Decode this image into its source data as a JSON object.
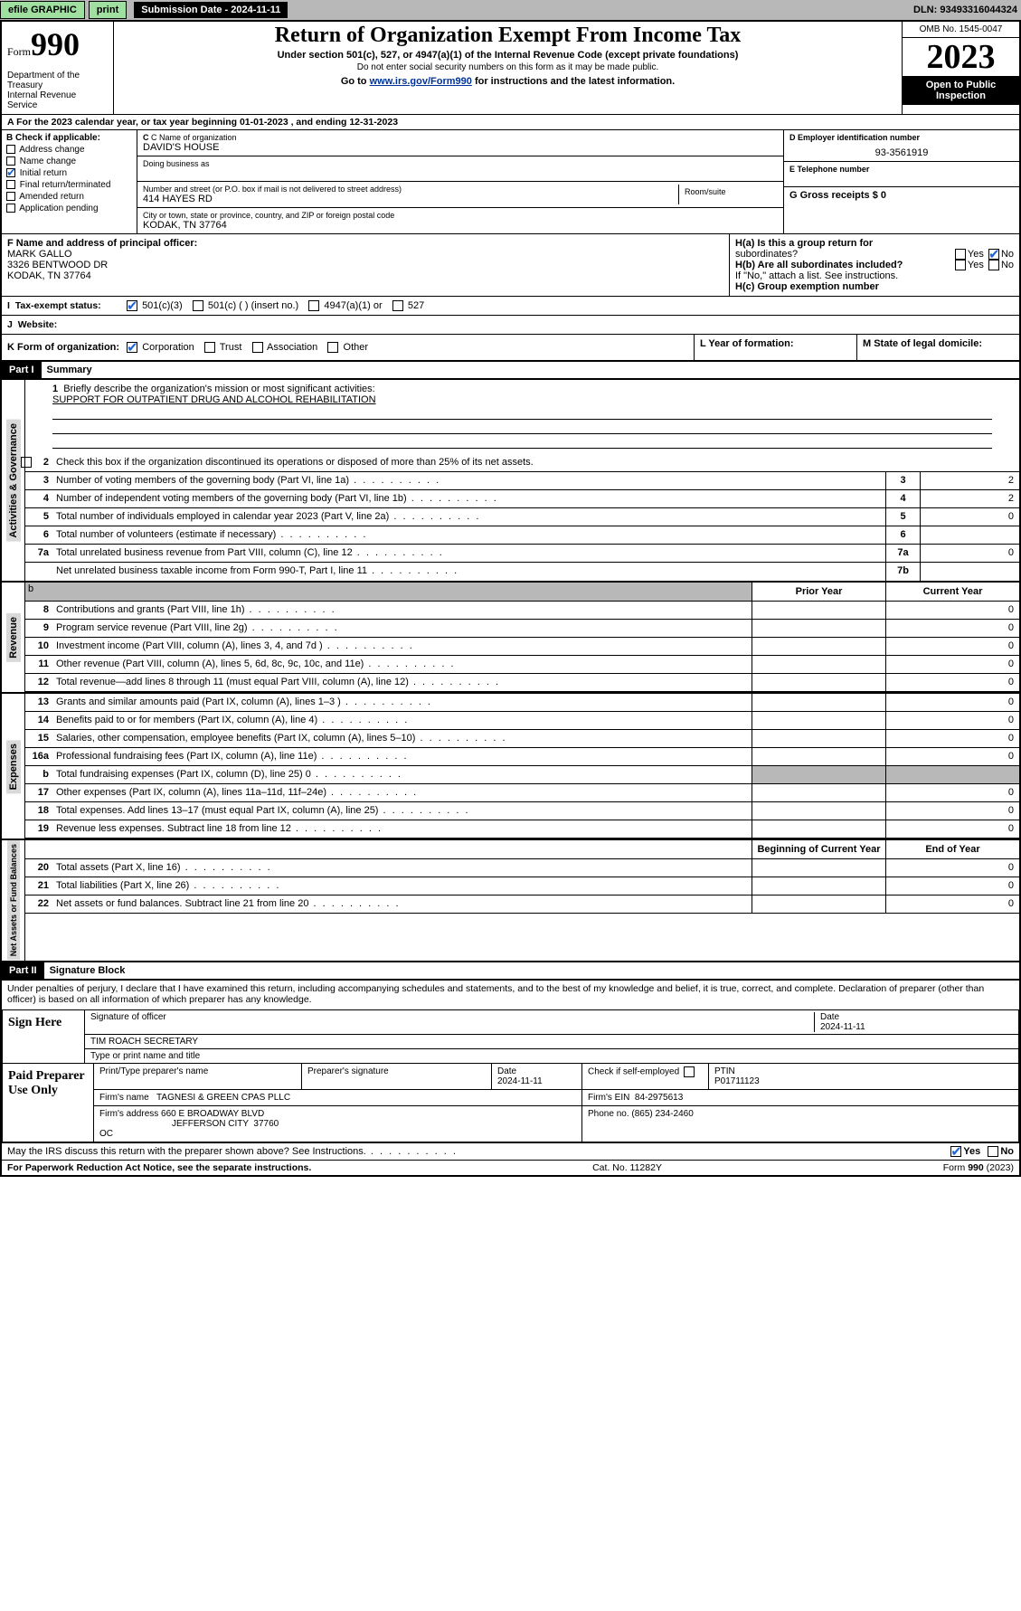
{
  "topbar": {
    "efile": "efile GRAPHIC",
    "print": "print",
    "subdate_label": "Submission Date - 2024-11-11",
    "dln_label": "DLN: 93493316044324"
  },
  "header": {
    "form_word": "Form",
    "form_num": "990",
    "dept": "Department of the Treasury",
    "irs": "Internal Revenue Service",
    "title": "Return of Organization Exempt From Income Tax",
    "subtitle": "Under section 501(c), 527, or 4947(a)(1) of the Internal Revenue Code (except private foundations)",
    "subnote": "Do not enter social security numbers on this form as it may be made public.",
    "golink_pre": "Go to ",
    "golink_url": "www.irs.gov/Form990",
    "golink_post": " for instructions and the latest information.",
    "omb_label": "OMB No. 1545-0047",
    "year": "2023",
    "openpub1": "Open to Public",
    "openpub2": "Inspection"
  },
  "a_row": "A For the 2023 calendar year, or tax year beginning 01-01-2023    , and ending 12-31-2023",
  "boxB": {
    "hdr": "B Check if applicable:",
    "items": [
      {
        "label": "Address change",
        "checked": false
      },
      {
        "label": "Name change",
        "checked": false
      },
      {
        "label": "Initial return",
        "checked": true
      },
      {
        "label": "Final return/terminated",
        "checked": false
      },
      {
        "label": "Amended return",
        "checked": false
      },
      {
        "label": "Application pending",
        "checked": false
      }
    ]
  },
  "boxC": {
    "name_hdr": "C Name of organization",
    "name": "DAVID'S HOUSE",
    "dba_hdr": "Doing business as",
    "dba": "",
    "addr_hdr": "Number and street (or P.O. box if mail is not delivered to street address)",
    "addr": "414 HAYES RD",
    "room_hdr": "Room/suite",
    "room": "",
    "city_hdr": "City or town, state or province, country, and ZIP or foreign postal code",
    "city": "KODAK, TN  37764"
  },
  "boxD": {
    "hdr": "D Employer identification number",
    "val": "93-3561919"
  },
  "boxE": {
    "hdr": "E Telephone number",
    "val": ""
  },
  "boxG": {
    "hdr": "G Gross receipts $ 0"
  },
  "boxF": {
    "hdr": "F  Name and address of principal officer:",
    "name": "MARK GALLO",
    "addr": "3326 BENTWOOD DR",
    "city": "KODAK, TN  37764"
  },
  "boxH": {
    "a": "H(a)  Is this a group return for",
    "a2": "subordinates?",
    "b": "H(b)  Are all subordinates included?",
    "ifno": "If \"No,\" attach a list. See instructions.",
    "c": "H(c)  Group exemption number"
  },
  "boxI": {
    "hdr": "Tax-exempt status:",
    "opts": [
      "501(c)(3)",
      "501(c) (  ) (insert no.)",
      "4947(a)(1) or",
      "527"
    ]
  },
  "boxJ": {
    "hdr": "Website:",
    "val": ""
  },
  "boxK": {
    "hdr": "K Form of organization:",
    "opts": [
      "Corporation",
      "Trust",
      "Association",
      "Other"
    ]
  },
  "boxL": {
    "hdr": "L Year of formation:"
  },
  "boxM": {
    "hdr": "M State of legal domicile:"
  },
  "part1": {
    "label": "Part I",
    "title": "Summary"
  },
  "p1_lines": {
    "l1": "Briefly describe the organization's mission or most significant activities:",
    "l1v": "SUPPORT FOR OUTPATIENT DRUG AND ALCOHOL REHABILITATION",
    "l2": "Check this box       if the organization discontinued its operations or disposed of more than 25% of its net assets.",
    "l3": "Number of voting members of the governing body (Part VI, line 1a)",
    "l4": "Number of independent voting members of the governing body (Part VI, line 1b)",
    "l5": "Total number of individuals employed in calendar year 2023 (Part V, line 2a)",
    "l6": "Total number of volunteers (estimate if necessary)",
    "l7a": "Total unrelated business revenue from Part VIII, column (C), line 12",
    "l7b": "Net unrelated business taxable income from Form 990-T, Part I, line 11"
  },
  "p1_vals": {
    "l3": "2",
    "l4": "2",
    "l5": "0",
    "l6": "",
    "l7a": "0",
    "l7b": ""
  },
  "colhdr": {
    "prior": "Prior Year",
    "curr": "Current Year",
    "boy": "Beginning of Current Year",
    "eoy": "End of Year"
  },
  "sides": {
    "ag": "Activities & Governance",
    "rev": "Revenue",
    "exp": "Expenses",
    "na": "Net Assets or\nFund Balances"
  },
  "revlines": [
    {
      "n": "8",
      "t": "Contributions and grants (Part VIII, line 1h)",
      "c2": "0"
    },
    {
      "n": "9",
      "t": "Program service revenue (Part VIII, line 2g)",
      "c2": "0"
    },
    {
      "n": "10",
      "t": "Investment income (Part VIII, column (A), lines 3, 4, and 7d )",
      "c2": "0"
    },
    {
      "n": "11",
      "t": "Other revenue (Part VIII, column (A), lines 5, 6d, 8c, 9c, 10c, and 11e)",
      "c2": "0"
    },
    {
      "n": "12",
      "t": "Total revenue—add lines 8 through 11 (must equal Part VIII, column (A), line 12)",
      "c2": "0"
    }
  ],
  "explines": [
    {
      "n": "13",
      "t": "Grants and similar amounts paid (Part IX, column (A), lines 1–3 )",
      "c2": "0"
    },
    {
      "n": "14",
      "t": "Benefits paid to or for members (Part IX, column (A), line 4)",
      "c2": "0"
    },
    {
      "n": "15",
      "t": "Salaries, other compensation, employee benefits (Part IX, column (A), lines 5–10)",
      "c2": "0"
    },
    {
      "n": "16a",
      "t": "Professional fundraising fees (Part IX, column (A), line 11e)",
      "c2": "0"
    },
    {
      "n": "b",
      "t": "Total fundraising expenses (Part IX, column (D), line 25) 0",
      "shade": true
    },
    {
      "n": "17",
      "t": "Other expenses (Part IX, column (A), lines 11a–11d, 11f–24e)",
      "c2": "0"
    },
    {
      "n": "18",
      "t": "Total expenses. Add lines 13–17 (must equal Part IX, column (A), line 25)",
      "c2": "0"
    },
    {
      "n": "19",
      "t": "Revenue less expenses. Subtract line 18 from line 12",
      "c2": "0"
    }
  ],
  "nalines": [
    {
      "n": "20",
      "t": "Total assets (Part X, line 16)",
      "c2": "0"
    },
    {
      "n": "21",
      "t": "Total liabilities (Part X, line 26)",
      "c2": "0"
    },
    {
      "n": "22",
      "t": "Net assets or fund balances. Subtract line 21 from line 20",
      "c2": "0"
    }
  ],
  "part2": {
    "label": "Part II",
    "title": "Signature Block"
  },
  "penalties": "Under penalties of perjury, I declare that I have examined this return, including accompanying schedules and statements, and to the best of my knowledge and belief, it is true, correct, and complete. Declaration of preparer (other than officer) is based on all information of which preparer has any knowledge.",
  "sign": {
    "here": "Sign Here",
    "sig_of": "Signature of officer",
    "date": "Date",
    "datev": "2024-11-11",
    "name": "TIM ROACH  SECRETARY",
    "nametitle": "Type or print name and title"
  },
  "paid": {
    "label": "Paid Preparer Use Only",
    "h1": "Print/Type preparer's name",
    "h2": "Preparer's signature",
    "h3": "Date",
    "h3v": "2024-11-11",
    "h4": "Check        if self-employed",
    "h5": "PTIN",
    "h5v": "P01711123",
    "firm": "Firm's name",
    "firmv": "TAGNESI & GREEN CPAS PLLC",
    "ein": "Firm's EIN",
    "einv": "84-2975613",
    "faddr": "Firm's address",
    "faddrv": "660 E BROADWAY BLVD",
    "faddrv2": "JEFFERSON CITY  37760\nOC",
    "phone": "Phone no. (865) 234-2460"
  },
  "discuss": "May the IRS discuss this return with the preparer shown above? See Instructions.",
  "footer": {
    "l": "For Paperwork Reduction Act Notice, see the separate instructions.",
    "m": "Cat. No. 11282Y",
    "r": "Form 990 (2023)"
  },
  "yesno": {
    "yes": "Yes",
    "no": "No"
  }
}
